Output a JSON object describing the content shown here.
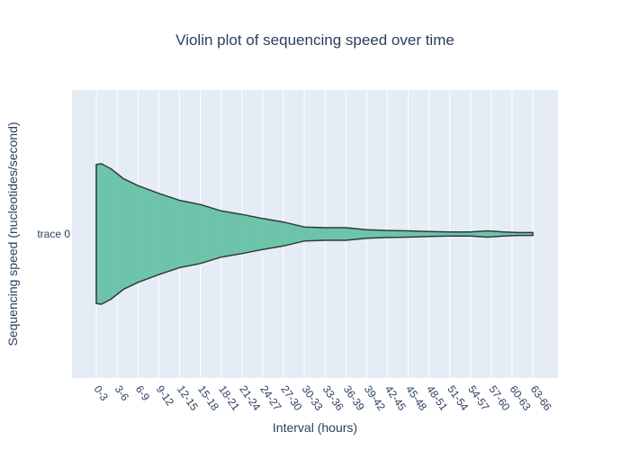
{
  "chart_data": {
    "type": "violin",
    "orientation": "horizontal",
    "title": "Violin plot of sequencing speed over time",
    "xlabel": "Interval (hours)",
    "ylabel": "Sequencing speed (nucleotides/second)",
    "categories": [
      "0-3",
      "3-6",
      "6-9",
      "9-12",
      "12-15",
      "15-18",
      "18-21",
      "21-24",
      "24-27",
      "27-30",
      "30-33",
      "33-36",
      "36-39",
      "39-42",
      "42-45",
      "45-48",
      "48-51",
      "51-54",
      "54-57",
      "57-60",
      "60-63",
      "63-66"
    ],
    "series": [
      {
        "name": "trace 0",
        "color": "#66c2a5",
        "density": [
          {
            "x": 0.0,
            "w": 0.99
          },
          {
            "x": 0.25,
            "w": 1.0
          },
          {
            "x": 0.7,
            "w": 0.93
          },
          {
            "x": 1.3,
            "w": 0.79
          },
          {
            "x": 2.0,
            "w": 0.69
          },
          {
            "x": 3.0,
            "w": 0.58
          },
          {
            "x": 4.0,
            "w": 0.48
          },
          {
            "x": 5.0,
            "w": 0.42
          },
          {
            "x": 6.0,
            "w": 0.33
          },
          {
            "x": 7.0,
            "w": 0.28
          },
          {
            "x": 8.0,
            "w": 0.22
          },
          {
            "x": 9.0,
            "w": 0.17
          },
          {
            "x": 10.0,
            "w": 0.1
          },
          {
            "x": 11.0,
            "w": 0.09
          },
          {
            "x": 12.0,
            "w": 0.09
          },
          {
            "x": 13.0,
            "w": 0.06
          },
          {
            "x": 14.0,
            "w": 0.05
          },
          {
            "x": 15.0,
            "w": 0.045
          },
          {
            "x": 16.0,
            "w": 0.035
          },
          {
            "x": 17.0,
            "w": 0.03
          },
          {
            "x": 18.0,
            "w": 0.03
          },
          {
            "x": 18.8,
            "w": 0.045
          },
          {
            "x": 19.6,
            "w": 0.03
          },
          {
            "x": 20.3,
            "w": 0.02
          },
          {
            "x": 21.0,
            "w": 0.02
          }
        ]
      }
    ],
    "ylim": [
      -1.0,
      1.0
    ],
    "grid": true,
    "legend": false
  }
}
